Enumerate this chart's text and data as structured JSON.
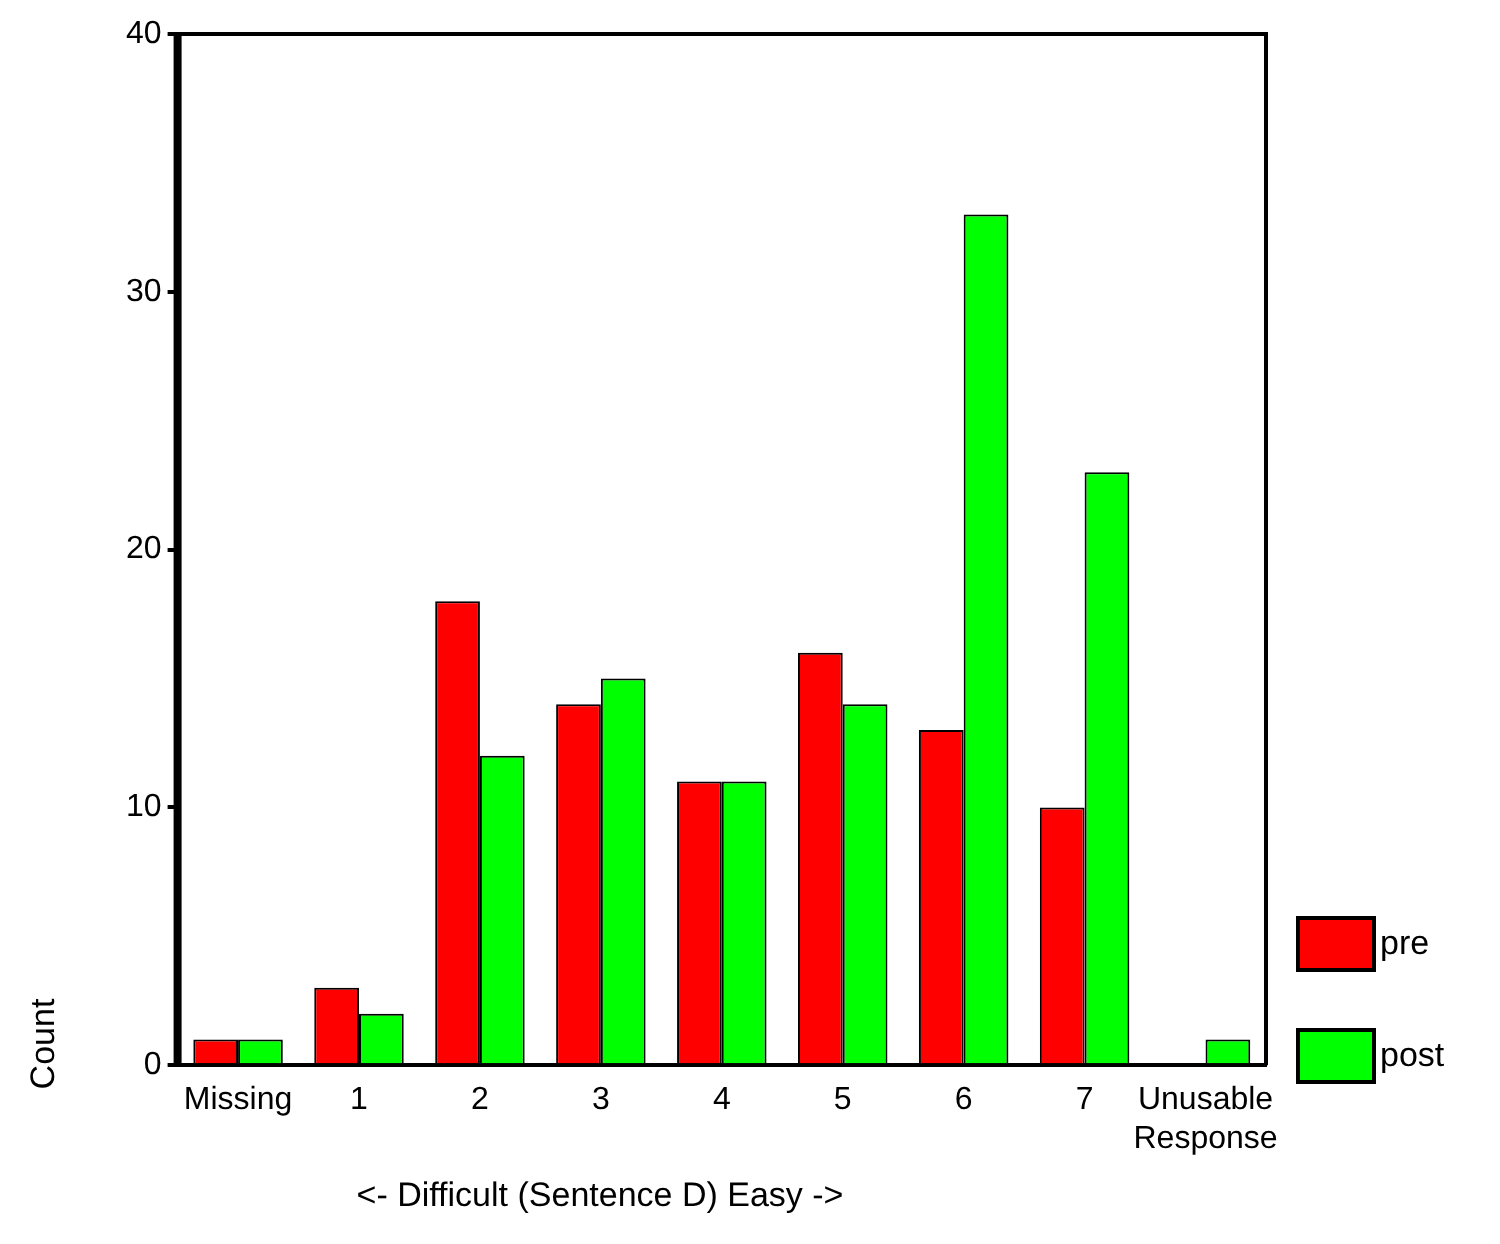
{
  "chart_data": {
    "type": "bar",
    "xlabel": "<- Difficult (Sentence D) Easy ->",
    "ylabel": "Count",
    "categories": [
      "Missing",
      "1",
      "2",
      "3",
      "4",
      "5",
      "6",
      "7",
      "Unusable Response"
    ],
    "series": [
      {
        "name": "pre",
        "color": "#ff0000",
        "values": [
          1,
          3,
          18,
          14,
          11,
          16,
          13,
          10,
          0
        ]
      },
      {
        "name": "post",
        "color": "#00ff00",
        "values": [
          1,
          2,
          12,
          15,
          11,
          14,
          33,
          23,
          1
        ]
      }
    ],
    "ylim": [
      0,
      40
    ],
    "yticks": [
      0,
      10,
      20,
      30,
      40
    ],
    "grid": false,
    "legend": "bottom right"
  }
}
